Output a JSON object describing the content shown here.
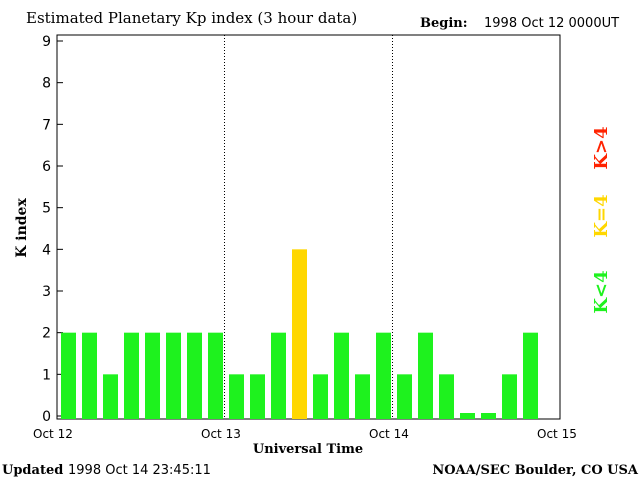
{
  "chart_data": {
    "type": "bar",
    "title": "Estimated Planetary Kp index (3 hour data)",
    "begin_label": "Begin:",
    "begin_value": "1998 Oct 12 0000UT",
    "xlabel": "Universal Time",
    "ylabel": "K index",
    "ylim": [
      0,
      9
    ],
    "yticks": [
      "0",
      "1",
      "2",
      "3",
      "4",
      "5",
      "6",
      "7",
      "8",
      "9"
    ],
    "xticks": [
      "Oct 12",
      "Oct 13",
      "Oct 14",
      "Oct 15"
    ],
    "values": [
      2,
      2,
      1,
      2,
      2,
      2,
      2,
      2,
      1,
      1,
      2,
      4,
      1,
      2,
      1,
      2,
      1,
      2,
      1,
      0,
      0,
      1,
      2
    ],
    "colors": {
      "below": "#1ef21e",
      "equal": "#ffd700",
      "above": "#ff2200"
    },
    "legend": [
      "K<4",
      "K=4",
      "K>4"
    ],
    "grid": "vertical dotted at day boundaries"
  },
  "footer": {
    "updated_label": "Updated",
    "updated_value": "1998 Oct 14 23:45:11",
    "credit": "NOAA/SEC Boulder, CO USA"
  }
}
